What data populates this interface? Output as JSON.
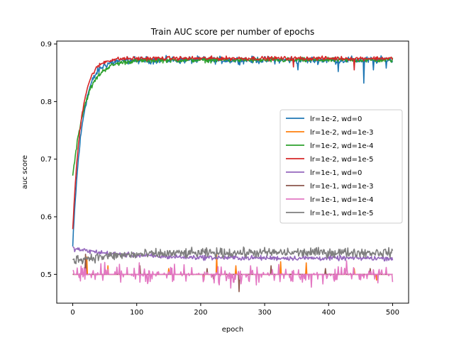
{
  "chart_data": {
    "type": "line",
    "title": "Train AUC score per number of epochs",
    "xlabel": "epoch",
    "ylabel": "auc score",
    "xlim": [
      -25,
      525
    ],
    "ylim": [
      0.45,
      0.905
    ],
    "xticks": [
      0,
      100,
      200,
      300,
      400,
      500
    ],
    "yticks": [
      0.5,
      0.6,
      0.7,
      0.8,
      0.9
    ],
    "grid": false,
    "legend_position": "center-right",
    "series": [
      {
        "name": "lr=1e-2, wd=0",
        "color": "#1f77b4",
        "start": 0.548,
        "plateau": 0.872,
        "rate": 14,
        "noise": 0.009,
        "dips": [
          [
            352,
            0.855
          ],
          [
            415,
            0.852
          ],
          [
            455,
            0.832
          ],
          [
            470,
            0.855
          ],
          [
            490,
            0.858
          ]
        ]
      },
      {
        "name": "lr=1e-2, wd=1e-3",
        "color": "#ff7f0e",
        "base": 0.5,
        "spikes": [
          [
            22,
            0.53
          ],
          [
            55,
            0.515
          ],
          [
            150,
            0.51
          ],
          [
            205,
            0.49
          ],
          [
            225,
            0.535
          ],
          [
            255,
            0.515
          ],
          [
            325,
            0.522
          ],
          [
            365,
            0.52
          ],
          [
            440,
            0.51
          ],
          [
            475,
            0.49
          ]
        ]
      },
      {
        "name": "lr=1e-2, wd=1e-4",
        "color": "#2ca02c",
        "start": 0.67,
        "plateau": 0.872,
        "rate": 20,
        "noise": 0.006
      },
      {
        "name": "lr=1e-2, wd=1e-5",
        "color": "#d62728",
        "start": 0.578,
        "plateau": 0.875,
        "rate": 13,
        "noise": 0.005,
        "dips": [
          [
            345,
            0.86
          ],
          [
            440,
            0.855
          ]
        ]
      },
      {
        "name": "lr=1e-1, wd=0",
        "color": "#9467bd",
        "start": 0.545,
        "plateau": 0.528,
        "noise": 0.006
      },
      {
        "name": "lr=1e-1, wd=1e-3",
        "color": "#8c564b",
        "base": 0.5,
        "spikes": [
          [
            20,
            0.535
          ],
          [
            105,
            0.515
          ],
          [
            210,
            0.51
          ],
          [
            220,
            0.492
          ],
          [
            238,
            0.505
          ],
          [
            260,
            0.47
          ],
          [
            310,
            0.515
          ],
          [
            395,
            0.51
          ],
          [
            425,
            0.51
          ],
          [
            465,
            0.51
          ]
        ]
      },
      {
        "name": "lr=1e-1, wd=1e-4",
        "color": "#e377c2",
        "base": 0.5,
        "noise": 0.02
      },
      {
        "name": "lr=1e-1, wd=1e-5",
        "color": "#7f7f7f",
        "start": 0.525,
        "plateau": 0.538,
        "noise": 0.012
      }
    ]
  }
}
